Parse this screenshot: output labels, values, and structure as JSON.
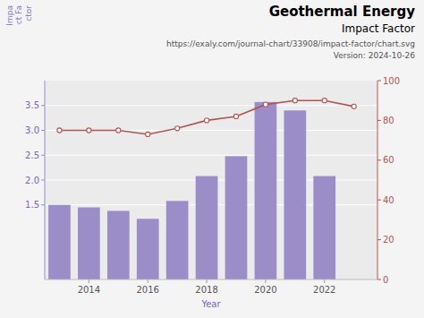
{
  "chart_data": {
    "type": "bar",
    "title": "Geothermal Energy",
    "subtitle": "Impact Factor",
    "annotations": [
      "https://exaly.com/journal-chart/33908/impact-factor/chart.svg",
      "Version: 2024-10-26"
    ],
    "xlabel": "Year",
    "ylabel": "Impa\nct Fa\nctor",
    "x": [
      2013,
      2014,
      2015,
      2016,
      2017,
      2018,
      2019,
      2020,
      2021,
      2022,
      2023
    ],
    "series": [
      {
        "type": "bar",
        "color": "#9b8dc8",
        "values": [
          1.5,
          1.45,
          1.38,
          1.22,
          1.58,
          2.08,
          2.48,
          3.57,
          3.4,
          2.08,
          null
        ]
      },
      {
        "type": "line",
        "axis": "y2",
        "color": "#b05555",
        "marker": "circle",
        "values": [
          75,
          75,
          75,
          73,
          76,
          80,
          82,
          88,
          90,
          90,
          87
        ]
      }
    ],
    "xlim": [
      2012.5,
      2023.8
    ],
    "xticks": [
      2014,
      2016,
      2018,
      2020,
      2022
    ],
    "ylim": [
      0,
      4.0
    ],
    "yticks": [
      1.5,
      {
        "value": 2.0,
        "label": "2.0"
      },
      2.5,
      {
        "value": 3.0,
        "label": "3.0"
      },
      3.5
    ],
    "y2lim": [
      0,
      100
    ],
    "y2ticks": [
      0,
      20,
      40,
      60,
      80,
      100
    ],
    "grid": true
  }
}
